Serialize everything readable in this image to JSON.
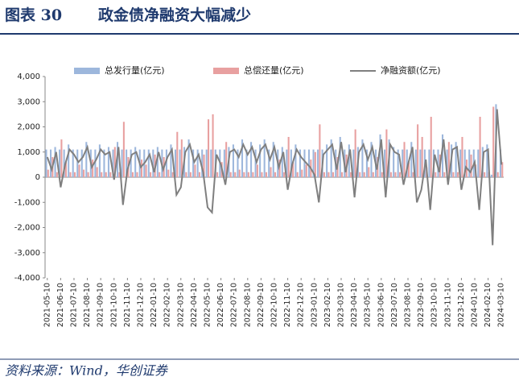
{
  "header": {
    "label": "图表 30",
    "title": "政金债净融资大幅减少"
  },
  "source": "资料来源：Wind，华创证券",
  "chart_data": {
    "type": "bar-line",
    "categories": [
      "2021-05-10",
      null,
      null,
      "2021-06-10",
      null,
      null,
      "2021-07-10",
      null,
      null,
      "2021-08-10",
      null,
      null,
      "2021-09-10",
      null,
      null,
      "2021-10-10",
      null,
      null,
      "2021-11-10",
      null,
      null,
      "2021-12-10",
      null,
      null,
      "2022-01-10",
      null,
      null,
      "2022-02-10",
      null,
      null,
      "2022-03-10",
      null,
      null,
      "2022-04-10",
      null,
      null,
      "2022-05-10",
      null,
      null,
      "2022-06-10",
      null,
      null,
      "2022-07-10",
      null,
      null,
      "2022-08-10",
      null,
      null,
      "2022-09-10",
      null,
      null,
      "2022-10-10",
      null,
      null,
      "2022-11-10",
      null,
      null,
      "2022-12-10",
      null,
      null,
      "2023-01-10",
      null,
      null,
      "2023-02-10",
      null,
      null,
      "2023-03-10",
      null,
      null,
      "2023-04-10",
      null,
      null,
      "2023-05-10",
      null,
      null,
      "2023-06-10",
      null,
      null,
      "2023-07-10",
      null,
      null,
      "2023-08-10",
      null,
      null,
      "2023-09-10",
      null,
      null,
      "2023-10-10",
      null,
      null,
      "2023-11-10",
      null,
      null,
      "2023-12-10",
      null,
      null,
      "2024-01-10",
      null,
      null,
      "2024-02-10",
      null,
      null,
      "2024-03-10"
    ],
    "series": [
      {
        "name": "总发行量(亿元)",
        "color": "#9db7dc",
        "kind": "bar",
        "values": [
          1100,
          1100,
          1200,
          1100,
          1100,
          1300,
          1100,
          1100,
          1100,
          1400,
          1100,
          1100,
          1300,
          1100,
          1200,
          1100,
          1400,
          1100,
          1100,
          1100,
          1200,
          1100,
          1100,
          1100,
          1100,
          1200,
          1100,
          1100,
          1300,
          1100,
          1100,
          1200,
          1500,
          1100,
          1100,
          1100,
          1100,
          1100,
          1100,
          1100,
          1100,
          1200,
          1300,
          1100,
          1500,
          1100,
          1400,
          1100,
          1300,
          1500,
          1100,
          1400,
          1100,
          1200,
          1100,
          1100,
          1300,
          1100,
          1100,
          1100,
          1100,
          1100,
          1100,
          1300,
          1500,
          1100,
          1600,
          1100,
          1300,
          1100,
          1200,
          1500,
          1100,
          1400,
          1100,
          1700,
          1100,
          1500,
          1200,
          1100,
          1100,
          1100,
          1400,
          1100,
          1100,
          1100,
          1100,
          1100,
          1100,
          1700,
          1100,
          1300,
          1400,
          1100,
          1100,
          1100,
          1100,
          1100,
          1200,
          1300,
          100,
          2900,
          1100
        ]
      },
      {
        "name": "总偿还量(亿元)",
        "color": "#e8a0a0",
        "kind": "bar",
        "values": [
          300,
          800,
          200,
          1500,
          600,
          200,
          200,
          500,
          300,
          200,
          700,
          400,
          200,
          200,
          200,
          1200,
          200,
          2200,
          800,
          200,
          200,
          700,
          500,
          200,
          900,
          200,
          800,
          300,
          200,
          1800,
          1500,
          200,
          200,
          500,
          200,
          900,
          2300,
          2500,
          200,
          600,
          1400,
          200,
          200,
          300,
          200,
          200,
          200,
          500,
          200,
          200,
          400,
          200,
          700,
          200,
          1600,
          600,
          200,
          300,
          500,
          700,
          1000,
          2100,
          200,
          200,
          200,
          800,
          200,
          900,
          200,
          1900,
          200,
          200,
          400,
          200,
          800,
          200,
          1900,
          200,
          200,
          200,
          1400,
          600,
          200,
          2100,
          1600,
          400,
          2400,
          200,
          900,
          200,
          1400,
          200,
          200,
          1600,
          700,
          900,
          500,
          2400,
          200,
          200,
          2800,
          200,
          600
        ]
      },
      {
        "name": "净融资额(亿元)",
        "color": "#7f7f7f",
        "kind": "line",
        "values": [
          800,
          300,
          1000,
          -400,
          500,
          1100,
          900,
          600,
          800,
          1200,
          400,
          700,
          1100,
          900,
          1000,
          -100,
          1200,
          -1100,
          300,
          900,
          1000,
          400,
          600,
          900,
          200,
          1000,
          300,
          800,
          1100,
          -700,
          -400,
          1000,
          1300,
          600,
          900,
          200,
          -1200,
          -1400,
          900,
          500,
          -300,
          1000,
          1100,
          800,
          1300,
          900,
          1200,
          600,
          1100,
          1300,
          700,
          1200,
          400,
          1000,
          -500,
          500,
          1100,
          800,
          600,
          400,
          100,
          -1000,
          900,
          1100,
          1300,
          300,
          1400,
          200,
          1100,
          -800,
          1000,
          1300,
          700,
          1200,
          300,
          1500,
          -800,
          1300,
          1000,
          900,
          -300,
          500,
          1200,
          -1000,
          -500,
          700,
          -1300,
          900,
          200,
          1500,
          -300,
          1100,
          1200,
          -500,
          400,
          200,
          600,
          -1300,
          1000,
          1100,
          -2700,
          2700,
          500
        ]
      }
    ],
    "ylim": [
      -4000,
      4000
    ],
    "yticks": [
      {
        "value": -4000,
        "label": "-4,000"
      },
      {
        "value": -3000,
        "label": "-3,000"
      },
      {
        "value": -2000,
        "label": "-2,000"
      },
      {
        "value": -1000,
        "label": "-1,000"
      },
      0,
      {
        "value": 1000,
        "label": "1,000"
      },
      {
        "value": 2000,
        "label": "2,000"
      },
      {
        "value": 3000,
        "label": "3,000"
      },
      {
        "value": 4000,
        "label": "4,000"
      }
    ]
  }
}
